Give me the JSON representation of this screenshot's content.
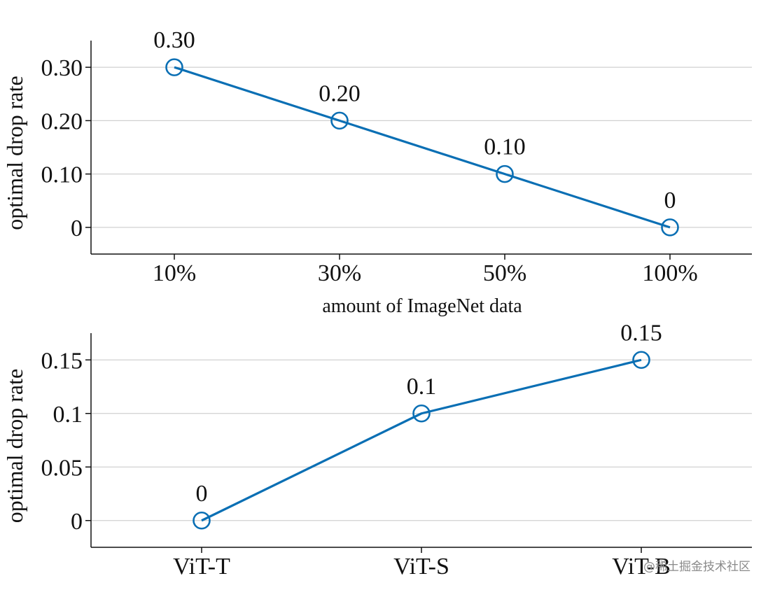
{
  "chart_data": [
    {
      "type": "line",
      "title": "",
      "xlabel": "amount of ImageNet data",
      "ylabel": "optimal drop rate",
      "categories": [
        "10%",
        "30%",
        "50%",
        "100%"
      ],
      "values": [
        0.3,
        0.2,
        0.1,
        0
      ],
      "data_labels": [
        "0.30",
        "0.20",
        "0.10",
        "0"
      ],
      "yticks": [
        0,
        0.1,
        0.2,
        0.3
      ],
      "ytick_labels": [
        "0",
        "0.10",
        "0.20",
        "0.30"
      ],
      "ylim": [
        -0.05,
        0.35
      ],
      "grid": "horizontal",
      "color": "#0a6fb4",
      "marker": "open-circle"
    },
    {
      "type": "line",
      "title": "",
      "xlabel": "",
      "ylabel": "optimal drop rate",
      "categories": [
        "ViT-T",
        "ViT-S",
        "ViT-B"
      ],
      "values": [
        0,
        0.1,
        0.15
      ],
      "data_labels": [
        "0",
        "0.1",
        "0.15"
      ],
      "yticks": [
        0,
        0.05,
        0.1,
        0.15
      ],
      "ytick_labels": [
        "0",
        "0.05",
        "0.1",
        "0.15"
      ],
      "ylim": [
        -0.025,
        0.175
      ],
      "grid": "horizontal",
      "color": "#0a6fb4",
      "marker": "open-circle"
    }
  ],
  "watermark": "@稀土掘金技术社区"
}
